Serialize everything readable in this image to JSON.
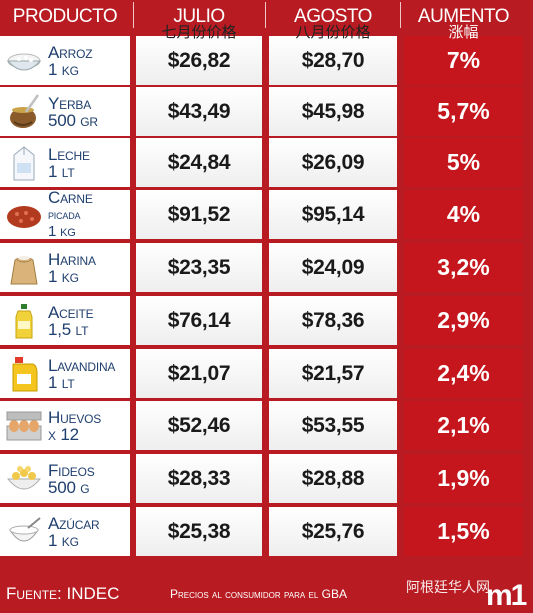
{
  "header": {
    "producto": "PRODUCTO",
    "julio": "JULIO",
    "julio_sub": "七月份价格",
    "agosto": "AGOSTO",
    "agosto_sub": "八月份价格",
    "aumento": "AUMENTO",
    "aumento_sub": "涨幅"
  },
  "rows": [
    {
      "name": "Arroz",
      "qty": "1 kg",
      "icon": "rice-bowl-icon",
      "julio": "$26,82",
      "agosto": "$28,70",
      "aumento": "7%"
    },
    {
      "name": "Yerba",
      "qty": "500 gr",
      "icon": "mate-gourd-icon",
      "julio": "$43,49",
      "agosto": "$45,98",
      "aumento": "5,7%"
    },
    {
      "name": "Leche",
      "qty": "1 lt",
      "icon": "milk-carton-icon",
      "julio": "$24,84",
      "agosto": "$26,09",
      "aumento": "5%"
    },
    {
      "name": "Carne",
      "name2": "picada",
      "qty": "1 kg",
      "icon": "ground-meat-icon",
      "julio": "$91,52",
      "agosto": "$95,14",
      "aumento": "4%"
    },
    {
      "name": "Harina",
      "qty": "1 kg",
      "icon": "flour-sack-icon",
      "julio": "$23,35",
      "agosto": "$24,09",
      "aumento": "3,2%"
    },
    {
      "name": "Aceite",
      "qty": "1,5 lt",
      "icon": "oil-bottle-icon",
      "julio": "$76,14",
      "agosto": "$78,36",
      "aumento": "2,9%"
    },
    {
      "name": "Lavandina",
      "qty": "1 lt",
      "icon": "bleach-bottle-icon",
      "julio": "$21,07",
      "agosto": "$21,57",
      "aumento": "2,4%"
    },
    {
      "name": "Huevos",
      "qty": "x 12",
      "icon": "egg-carton-icon",
      "julio": "$52,46",
      "agosto": "$53,55",
      "aumento": "2,1%"
    },
    {
      "name": "Fideos",
      "qty": "500 g",
      "icon": "pasta-bowl-icon",
      "julio": "$28,33",
      "agosto": "$28,88",
      "aumento": "1,9%"
    },
    {
      "name": "Azúcar",
      "qty": "1 kg",
      "icon": "sugar-bowl-icon",
      "julio": "$25,38",
      "agosto": "$25,76",
      "aumento": "1,5%"
    }
  ],
  "footer": {
    "source": "Fuente: INDEC",
    "note": "Precios al consumidor para el GBA",
    "watermark": "阿根廷华人网",
    "logo": "m1"
  },
  "colors": {
    "accent": "#b81c22",
    "increase_cell": "#c4161c",
    "product_text": "#1f3f6e"
  }
}
